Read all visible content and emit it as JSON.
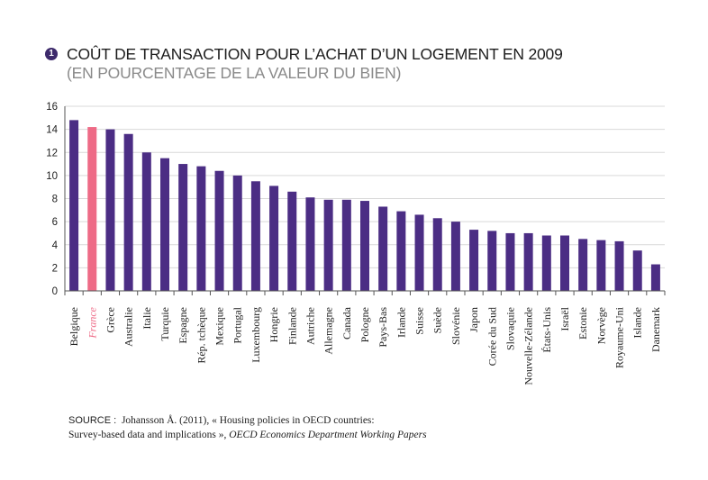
{
  "figure": {
    "number": "1",
    "title": "COÛT DE TRANSACTION POUR L’ACHAT D’UN LOGEMENT EN 2009",
    "subtitle": "(EN POURCENTAGE DE LA VALEUR DU BIEN)"
  },
  "colors": {
    "bar": "#4b2d84",
    "highlight": "#ee6a86",
    "axis": "#555555",
    "grid": "#d9d9d9"
  },
  "chart_data": {
    "type": "bar",
    "categories": [
      "Belgique",
      "France",
      "Grèce",
      "Australie",
      "Italie",
      "Turquie",
      "Espagne",
      "Rép. tchèque",
      "Mexique",
      "Portugal",
      "Luxembourg",
      "Hongrie",
      "Finlande",
      "Autriche",
      "Allemagne",
      "Canada",
      "Pologne",
      "Pays-Bas",
      "Irlande",
      "Suisse",
      "Suède",
      "Slovénie",
      "Japon",
      "Corée du Sud",
      "Slovaquie",
      "Nouvelle-Zélande",
      "États-Unis",
      "Israël",
      "Estonie",
      "Norvège",
      "Royaume-Uni",
      "Islande",
      "Danemark"
    ],
    "values": [
      14.8,
      14.2,
      14.0,
      13.6,
      12.0,
      11.5,
      11.0,
      10.8,
      10.4,
      10.0,
      9.5,
      9.1,
      8.6,
      8.1,
      7.9,
      7.9,
      7.8,
      7.3,
      6.9,
      6.6,
      6.3,
      6.0,
      5.3,
      5.2,
      5.0,
      5.0,
      4.8,
      4.8,
      4.5,
      4.4,
      4.3,
      3.5,
      2.3
    ],
    "highlight": "France",
    "yticks": [
      "0",
      "2",
      "4",
      "6",
      "8",
      "10",
      "12",
      "14",
      "16"
    ],
    "ylim": [
      0,
      16
    ],
    "grid": true,
    "xlabel": "",
    "ylabel": ""
  },
  "source": {
    "label": "SOURCE :",
    "text": "Johansson Å. (2011), « Housing policies in OECD countries:",
    "text2": "Survey-based data and implications »,",
    "publication": "OECD Economics Department Working Papers"
  }
}
